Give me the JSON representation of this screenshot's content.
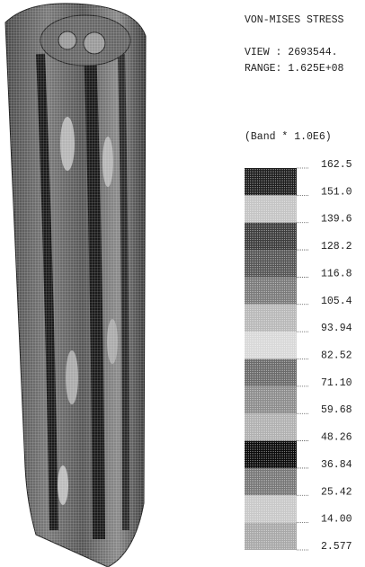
{
  "header": {
    "title": "VON-MISES STRESS",
    "view": "VIEW : 2693544.",
    "range": "RANGE: 1.625E+08"
  },
  "legend": {
    "title": "(Band * 1.0E6)",
    "labels": [
      "162.5",
      "151.0",
      "139.6",
      "128.2",
      "116.8",
      "105.4",
      "93.94",
      "82.52",
      "71.10",
      "59.68",
      "48.26",
      "36.84",
      "25.42",
      "14.00",
      "2.577"
    ]
  }
}
